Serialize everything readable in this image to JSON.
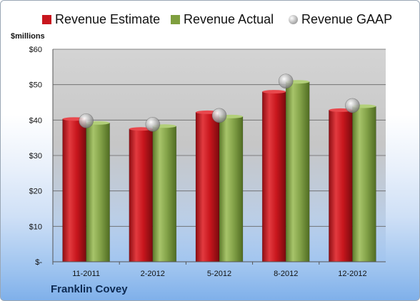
{
  "legend": [
    {
      "label": "Revenue Estimate",
      "color": "#c8161d"
    },
    {
      "label": "Revenue Actual",
      "color": "#7f9f3f"
    },
    {
      "label": "Revenue GAAP",
      "color": "#b7b7b7"
    }
  ],
  "unit_label": "$millions",
  "company": "Franklin Covey",
  "chart_data": {
    "type": "bar",
    "categories": [
      "11-2011",
      "2-2012",
      "5-2012",
      "8-2012",
      "12-2012"
    ],
    "series": [
      {
        "name": "Revenue Estimate",
        "type": "bar",
        "color": "#c8161d",
        "values": [
          40.3,
          37.5,
          42.2,
          48.0,
          42.8
        ]
      },
      {
        "name": "Revenue Actual",
        "type": "bar",
        "color": "#7f9f3f",
        "values": [
          39.2,
          38.3,
          41.0,
          50.8,
          43.9
        ]
      },
      {
        "name": "Revenue GAAP",
        "type": "scatter",
        "color": "#b7b7b7",
        "values": [
          39.8,
          38.8,
          41.3,
          51.0,
          44.1
        ]
      }
    ],
    "ylabel": "$millions",
    "ylim": [
      0,
      60
    ],
    "yticks": [
      0,
      10,
      20,
      30,
      40,
      50,
      60
    ],
    "ytick_labels": [
      "$-",
      "$10",
      "$20",
      "$30",
      "$40",
      "$50",
      "$60"
    ],
    "grid": true,
    "legend_position": "top"
  }
}
